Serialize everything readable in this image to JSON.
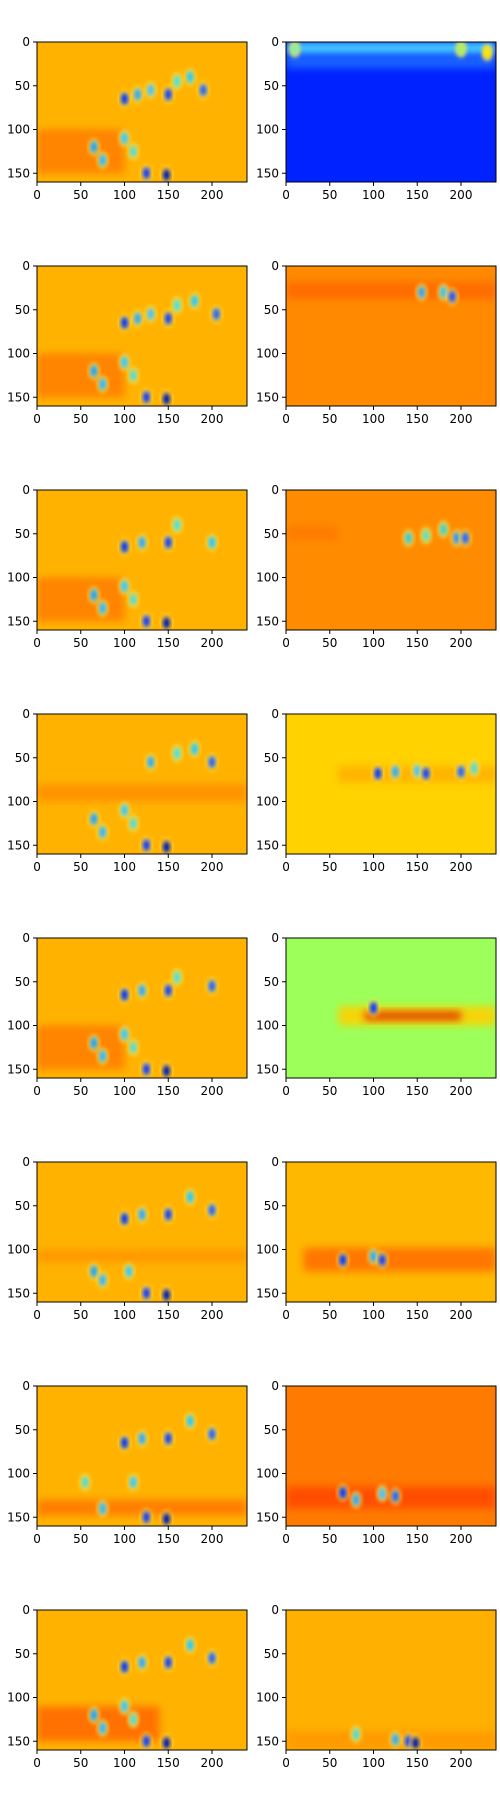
{
  "chart_data": {
    "type": "heatmap",
    "layout": "8 rows x 2 columns of image panels",
    "colormap": "jet",
    "colormap_stops": [
      "#00007f",
      "#0000ff",
      "#007fff",
      "#00ffff",
      "#7fff7f",
      "#ffff00",
      "#ff7f00",
      "#ff0000",
      "#7f0000"
    ],
    "xlim": [
      0,
      240
    ],
    "ylim": [
      160,
      0
    ],
    "xticks": [
      0,
      50,
      100,
      150,
      200
    ],
    "yticks": [
      0,
      50,
      100,
      150
    ],
    "panels": [
      {
        "row": 0,
        "col": 0,
        "background": "#ffb300",
        "bands": [
          {
            "x0": 0,
            "x1": 100,
            "y0": 100,
            "y1": 150,
            "color": "#ff7f00"
          }
        ],
        "blobs": [
          [
            100,
            65,
            "#0033ff"
          ],
          [
            115,
            60,
            "#2aa7ff"
          ],
          [
            130,
            55,
            "#44c0ff"
          ],
          [
            150,
            60,
            "#0a3aff"
          ],
          [
            160,
            45,
            "#48e0e0"
          ],
          [
            175,
            40,
            "#22c7ff"
          ],
          [
            190,
            55,
            "#1c60ff"
          ],
          [
            65,
            120,
            "#1aa0ff"
          ],
          [
            75,
            135,
            "#2fb4ff"
          ],
          [
            100,
            110,
            "#34c6ff"
          ],
          [
            110,
            125,
            "#56d7d0"
          ],
          [
            125,
            150,
            "#0a36ff"
          ],
          [
            148,
            152,
            "#0010a8"
          ]
        ]
      },
      {
        "row": 0,
        "col": 1,
        "background": "#0022ff",
        "bands": [
          {
            "x0": 0,
            "x1": 240,
            "y0": 0,
            "y1": 15,
            "color": "#4fe0ff"
          },
          {
            "x0": 0,
            "x1": 240,
            "y0": 15,
            "y1": 30,
            "color": "#1f6aff"
          }
        ],
        "blobs": [
          [
            230,
            12,
            "#ffe600"
          ],
          [
            200,
            8,
            "#9ff566"
          ],
          [
            10,
            8,
            "#7ff0b0"
          ]
        ]
      },
      {
        "row": 1,
        "col": 0,
        "background": "#ffb300",
        "bands": [
          {
            "x0": 0,
            "x1": 100,
            "y0": 100,
            "y1": 150,
            "color": "#ff7f00"
          }
        ],
        "blobs": [
          [
            100,
            65,
            "#0033ff"
          ],
          [
            115,
            60,
            "#2aa7ff"
          ],
          [
            130,
            55,
            "#44c0ff"
          ],
          [
            150,
            60,
            "#0a3aff"
          ],
          [
            160,
            45,
            "#48e0e0"
          ],
          [
            180,
            40,
            "#22c7ff"
          ],
          [
            205,
            55,
            "#1c60ff"
          ],
          [
            65,
            120,
            "#1aa0ff"
          ],
          [
            75,
            135,
            "#2fb4ff"
          ],
          [
            100,
            110,
            "#34c6ff"
          ],
          [
            110,
            125,
            "#56d7d0"
          ],
          [
            125,
            150,
            "#0a36ff"
          ],
          [
            148,
            152,
            "#0010a8"
          ]
        ]
      },
      {
        "row": 1,
        "col": 1,
        "background": "#ff8a00",
        "bands": [
          {
            "x0": 0,
            "x1": 240,
            "y0": 18,
            "y1": 38,
            "color": "#ff6a00"
          }
        ],
        "blobs": [
          [
            155,
            30,
            "#2f9fff"
          ],
          [
            180,
            30,
            "#36c0ff"
          ],
          [
            190,
            35,
            "#1b50ff"
          ]
        ]
      },
      {
        "row": 2,
        "col": 0,
        "background": "#ffb300",
        "bands": [
          {
            "x0": 0,
            "x1": 100,
            "y0": 100,
            "y1": 150,
            "color": "#ff7f00"
          }
        ],
        "blobs": [
          [
            100,
            65,
            "#0033ff"
          ],
          [
            120,
            60,
            "#2aa7ff"
          ],
          [
            150,
            60,
            "#0a3aff"
          ],
          [
            160,
            40,
            "#48e0e0"
          ],
          [
            200,
            60,
            "#22c7ff"
          ],
          [
            65,
            120,
            "#1aa0ff"
          ],
          [
            75,
            135,
            "#2fb4ff"
          ],
          [
            100,
            110,
            "#34c6ff"
          ],
          [
            110,
            125,
            "#56d7d0"
          ],
          [
            125,
            150,
            "#0a36ff"
          ],
          [
            148,
            152,
            "#0010a8"
          ]
        ]
      },
      {
        "row": 2,
        "col": 1,
        "background": "#ff8c00",
        "bands": [
          {
            "x0": 0,
            "x1": 60,
            "y0": 40,
            "y1": 58,
            "color": "#ff7a00"
          }
        ],
        "blobs": [
          [
            140,
            55,
            "#36c8e0"
          ],
          [
            160,
            52,
            "#58e0c0"
          ],
          [
            180,
            45,
            "#3ad0d0"
          ],
          [
            195,
            55,
            "#2a90ff"
          ],
          [
            205,
            55,
            "#1c60ff"
          ]
        ]
      },
      {
        "row": 3,
        "col": 0,
        "background": "#ffb300",
        "bands": [
          {
            "x0": 0,
            "x1": 240,
            "y0": 80,
            "y1": 100,
            "color": "#ff9000"
          }
        ],
        "blobs": [
          [
            130,
            55,
            "#2aa7ff"
          ],
          [
            160,
            45,
            "#48e0e0"
          ],
          [
            180,
            40,
            "#22c7ff"
          ],
          [
            200,
            55,
            "#1c60ff"
          ],
          [
            65,
            120,
            "#1aa0ff"
          ],
          [
            75,
            135,
            "#2fb4ff"
          ],
          [
            100,
            110,
            "#34c6ff"
          ],
          [
            110,
            125,
            "#56d7d0"
          ],
          [
            125,
            150,
            "#0a36ff"
          ],
          [
            148,
            152,
            "#0010a8"
          ]
        ]
      },
      {
        "row": 3,
        "col": 1,
        "background": "#ffd200",
        "bands": [
          {
            "x0": 60,
            "x1": 240,
            "y0": 60,
            "y1": 78,
            "color": "#ffb000"
          }
        ],
        "blobs": [
          [
            105,
            68,
            "#0033ff"
          ],
          [
            125,
            66,
            "#2aa7ff"
          ],
          [
            150,
            65,
            "#44c0ff"
          ],
          [
            160,
            68,
            "#0a3aff"
          ],
          [
            200,
            66,
            "#1c60ff"
          ],
          [
            215,
            62,
            "#56d7d0"
          ]
        ]
      },
      {
        "row": 4,
        "col": 0,
        "background": "#ffb300",
        "bands": [
          {
            "x0": 0,
            "x1": 100,
            "y0": 100,
            "y1": 150,
            "color": "#ff7f00"
          }
        ],
        "blobs": [
          [
            100,
            65,
            "#0033ff"
          ],
          [
            120,
            60,
            "#2aa7ff"
          ],
          [
            150,
            60,
            "#0a3aff"
          ],
          [
            160,
            45,
            "#48e0e0"
          ],
          [
            200,
            55,
            "#1c60ff"
          ],
          [
            65,
            120,
            "#1aa0ff"
          ],
          [
            75,
            135,
            "#2fb4ff"
          ],
          [
            100,
            110,
            "#34c6ff"
          ],
          [
            110,
            125,
            "#56d7d0"
          ],
          [
            125,
            150,
            "#0a36ff"
          ],
          [
            148,
            152,
            "#0010a8"
          ]
        ]
      },
      {
        "row": 4,
        "col": 1,
        "background": "#9cff5a",
        "bands": [
          {
            "x0": 60,
            "x1": 240,
            "y0": 78,
            "y1": 100,
            "color": "#ffd000"
          },
          {
            "x0": 90,
            "x1": 200,
            "y0": 84,
            "y1": 94,
            "color": "#e03000"
          }
        ],
        "blobs": [
          [
            100,
            80,
            "#0033ff"
          ]
        ]
      },
      {
        "row": 5,
        "col": 0,
        "background": "#ffb300",
        "bands": [
          {
            "x0": 0,
            "x1": 240,
            "y0": 100,
            "y1": 115,
            "color": "#ff9600"
          }
        ],
        "blobs": [
          [
            100,
            65,
            "#0033ff"
          ],
          [
            120,
            60,
            "#2aa7ff"
          ],
          [
            150,
            60,
            "#0a3aff"
          ],
          [
            175,
            40,
            "#22c7ff"
          ],
          [
            200,
            55,
            "#1c60ff"
          ],
          [
            65,
            125,
            "#1aa0ff"
          ],
          [
            75,
            135,
            "#2fb4ff"
          ],
          [
            105,
            125,
            "#34c6ff"
          ],
          [
            125,
            150,
            "#0a36ff"
          ],
          [
            148,
            152,
            "#0010a8"
          ]
        ]
      },
      {
        "row": 5,
        "col": 1,
        "background": "#ffb800",
        "bands": [
          {
            "x0": 20,
            "x1": 240,
            "y0": 98,
            "y1": 125,
            "color": "#ff7000"
          }
        ],
        "blobs": [
          [
            65,
            112,
            "#0033ff"
          ],
          [
            100,
            108,
            "#2aa7ff"
          ],
          [
            110,
            112,
            "#0a3aff"
          ]
        ]
      },
      {
        "row": 6,
        "col": 0,
        "background": "#ffb300",
        "bands": [
          {
            "x0": 0,
            "x1": 240,
            "y0": 130,
            "y1": 148,
            "color": "#ff7800"
          }
        ],
        "blobs": [
          [
            100,
            65,
            "#0033ff"
          ],
          [
            120,
            60,
            "#2aa7ff"
          ],
          [
            150,
            60,
            "#0a3aff"
          ],
          [
            175,
            40,
            "#22c7ff"
          ],
          [
            200,
            55,
            "#1c60ff"
          ],
          [
            55,
            110,
            "#56d7d0"
          ],
          [
            110,
            110,
            "#34c6ff"
          ],
          [
            75,
            140,
            "#2fb4ff"
          ],
          [
            125,
            150,
            "#0a36ff"
          ],
          [
            148,
            152,
            "#0010a8"
          ]
        ]
      },
      {
        "row": 6,
        "col": 1,
        "background": "#ff7a00",
        "bands": [
          {
            "x0": 0,
            "x1": 240,
            "y0": 115,
            "y1": 140,
            "color": "#ff4a00"
          }
        ],
        "blobs": [
          [
            65,
            122,
            "#0033ff"
          ],
          [
            80,
            130,
            "#2aa7ff"
          ],
          [
            110,
            123,
            "#44c0ff"
          ],
          [
            125,
            126,
            "#1c60ff"
          ]
        ]
      },
      {
        "row": 7,
        "col": 0,
        "background": "#ffb300",
        "bands": [
          {
            "x0": 0,
            "x1": 140,
            "y0": 110,
            "y1": 150,
            "color": "#ff6a00"
          }
        ],
        "blobs": [
          [
            100,
            65,
            "#0033ff"
          ],
          [
            120,
            60,
            "#2aa7ff"
          ],
          [
            150,
            60,
            "#0a3aff"
          ],
          [
            175,
            40,
            "#22c7ff"
          ],
          [
            200,
            55,
            "#1c60ff"
          ],
          [
            65,
            120,
            "#1aa0ff"
          ],
          [
            75,
            135,
            "#2fb4ff"
          ],
          [
            100,
            110,
            "#34c6ff"
          ],
          [
            110,
            125,
            "#56d7d0"
          ],
          [
            125,
            150,
            "#0a36ff"
          ],
          [
            148,
            152,
            "#0010a8"
          ]
        ]
      },
      {
        "row": 7,
        "col": 1,
        "background": "#ffb000",
        "bands": [
          {
            "x0": 0,
            "x1": 240,
            "y0": 138,
            "y1": 160,
            "color": "#ff9a00"
          }
        ],
        "blobs": [
          [
            80,
            142,
            "#56d7d0"
          ],
          [
            125,
            148,
            "#2aa7ff"
          ],
          [
            140,
            150,
            "#0a36ff"
          ],
          [
            148,
            152,
            "#0010a8"
          ]
        ]
      }
    ]
  }
}
